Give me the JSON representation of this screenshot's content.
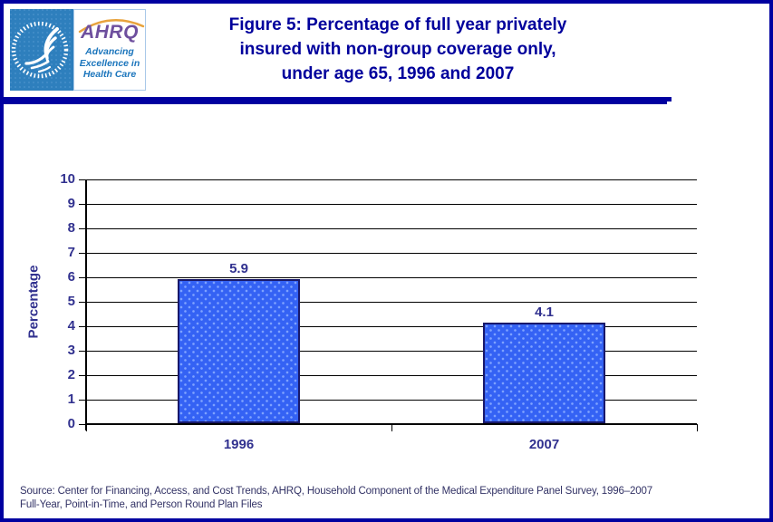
{
  "header": {
    "logo": {
      "hhs_emblem": "hhs-eagle-seal",
      "ahrq_acronym": "AHRQ",
      "ahrq_tagline_lines": [
        "Advancing",
        "Excellence in",
        "Health Care"
      ]
    },
    "title_lines": [
      "Figure 5: Percentage of full year privately",
      "insured with non-group coverage only,",
      "under age 65, 1996 and 2007"
    ]
  },
  "chart_data": {
    "type": "bar",
    "categories": [
      "1996",
      "2007"
    ],
    "values": [
      5.9,
      4.1
    ],
    "value_labels": [
      "5.9",
      "4.1"
    ],
    "title": "Percentage of full year privately insured with non-group coverage only, under age 65, 1996 and 2007",
    "xlabel": "",
    "ylabel": "Percentage",
    "ylim": [
      0,
      10
    ],
    "yticks": [
      0,
      1,
      2,
      3,
      4,
      5,
      6,
      7,
      8,
      9,
      10
    ],
    "grid": true,
    "legend": "none",
    "bar_fill": "#3462F4",
    "bar_dot": "#7FA3FF",
    "bar_border": "#18186B"
  },
  "footer": {
    "source_line1": "Source: Center for Financing, Access, and Cost Trends, AHRQ, Household Component of the Medical Expenditure Panel Survey, 1996–2007",
    "source_line2": "Full-Year, Point-in-Time, and Person Round Plan Files"
  },
  "colors": {
    "page_border": "#0000A0",
    "title_text": "#00009C",
    "axis_text": "#31318F",
    "source_text": "#333366",
    "hhs_blue": "#2E7FBD",
    "ahrq_purple": "#6E4F9E",
    "ahrq_blue": "#1B75BC",
    "arc_orange": "#E8A33D"
  }
}
